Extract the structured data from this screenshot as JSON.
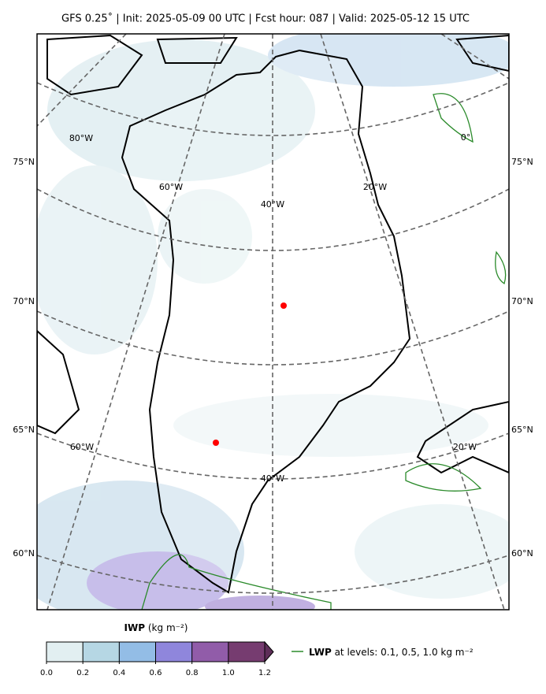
{
  "header": {
    "title": "GFS 0.25˚  |  Init: 2025-05-09 00 UTC  |  Fcst hour: 087  |  Valid: 2025-05-12 15 UTC"
  },
  "map": {
    "lat_labels_left": [
      "75°N",
      "70°N",
      "65°N",
      "60°N"
    ],
    "lat_labels_right": [
      "75°N",
      "70°N",
      "65°N",
      "60°N"
    ],
    "lon_labels": [
      "80°W",
      "60°W",
      "40°W",
      "20°W",
      "0°",
      "60°W",
      "20°W",
      "40°W"
    ]
  },
  "colorbar": {
    "label_bold": "IWP",
    "label_units": "(kg m⁻²)",
    "ticks": [
      {
        "value": 0,
        "label": "0.0"
      },
      0.2,
      0.4,
      0.6,
      0.8,
      {
        "value": 1,
        "label": "1.0"
      },
      1.2
    ],
    "colors": [
      "#e2eff1",
      "#b6d7e4",
      "#93bde6",
      "#8f86dc",
      "#915ca9",
      "#763c70"
    ],
    "extend_color": "#5e2e58"
  },
  "legend": {
    "label_bold": "LWP",
    "label_text": "at levels: 0.1, 0.5, 1.0  kg m⁻²",
    "color": "#2a8a2a"
  }
}
